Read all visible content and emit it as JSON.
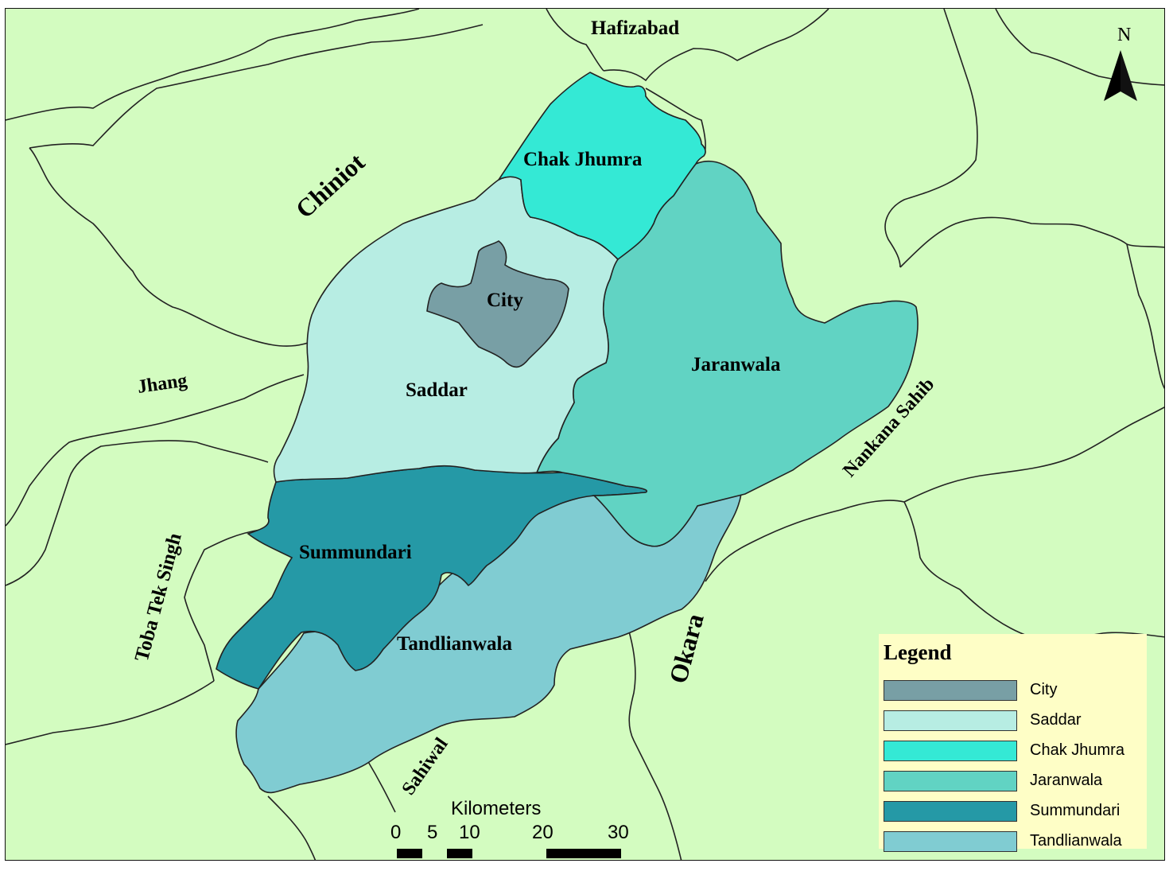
{
  "north_arrow": {
    "letter": "N",
    "icon": "north-arrow-icon"
  },
  "neighbors": [
    {
      "id": "hafizabad",
      "label": "Hafizabad"
    },
    {
      "id": "chiniot",
      "label": "Chiniot"
    },
    {
      "id": "jhang",
      "label": "Jhang"
    },
    {
      "id": "toba-tek-singh",
      "label": "Toba Tek Singh"
    },
    {
      "id": "nankana-sahib",
      "label": "Nankana Sahib"
    },
    {
      "id": "okara",
      "label": "Okara"
    },
    {
      "id": "sahiwal",
      "label": "Sahiwal"
    }
  ],
  "regions": [
    {
      "id": "city",
      "label": "City",
      "color": "#789fa5"
    },
    {
      "id": "saddar",
      "label": "Saddar",
      "color": "#b7ede3"
    },
    {
      "id": "chak-jhumra",
      "label": "Chak Jhumra",
      "color": "#34e9d5"
    },
    {
      "id": "jaranwala",
      "label": "Jaranwala",
      "color": "#61d3c3"
    },
    {
      "id": "summundari",
      "label": "Summundari",
      "color": "#2599a6"
    },
    {
      "id": "tandlianwala",
      "label": "Tandlianwala",
      "color": "#80ccd2"
    }
  ],
  "background_color": "#d3fcc0",
  "legend": {
    "title": "Legend",
    "items": [
      {
        "label": "City",
        "color": "#789fa5"
      },
      {
        "label": "Saddar",
        "color": "#b7ede3"
      },
      {
        "label": "Chak Jhumra",
        "color": "#34e9d5"
      },
      {
        "label": "Jaranwala",
        "color": "#61d3c3"
      },
      {
        "label": "Summundari",
        "color": "#2599a6"
      },
      {
        "label": "Tandlianwala",
        "color": "#80ccd2"
      }
    ]
  },
  "scale_bar": {
    "title": "Kilometers",
    "ticks": [
      "0",
      "5",
      "10",
      "20",
      "30"
    ]
  }
}
